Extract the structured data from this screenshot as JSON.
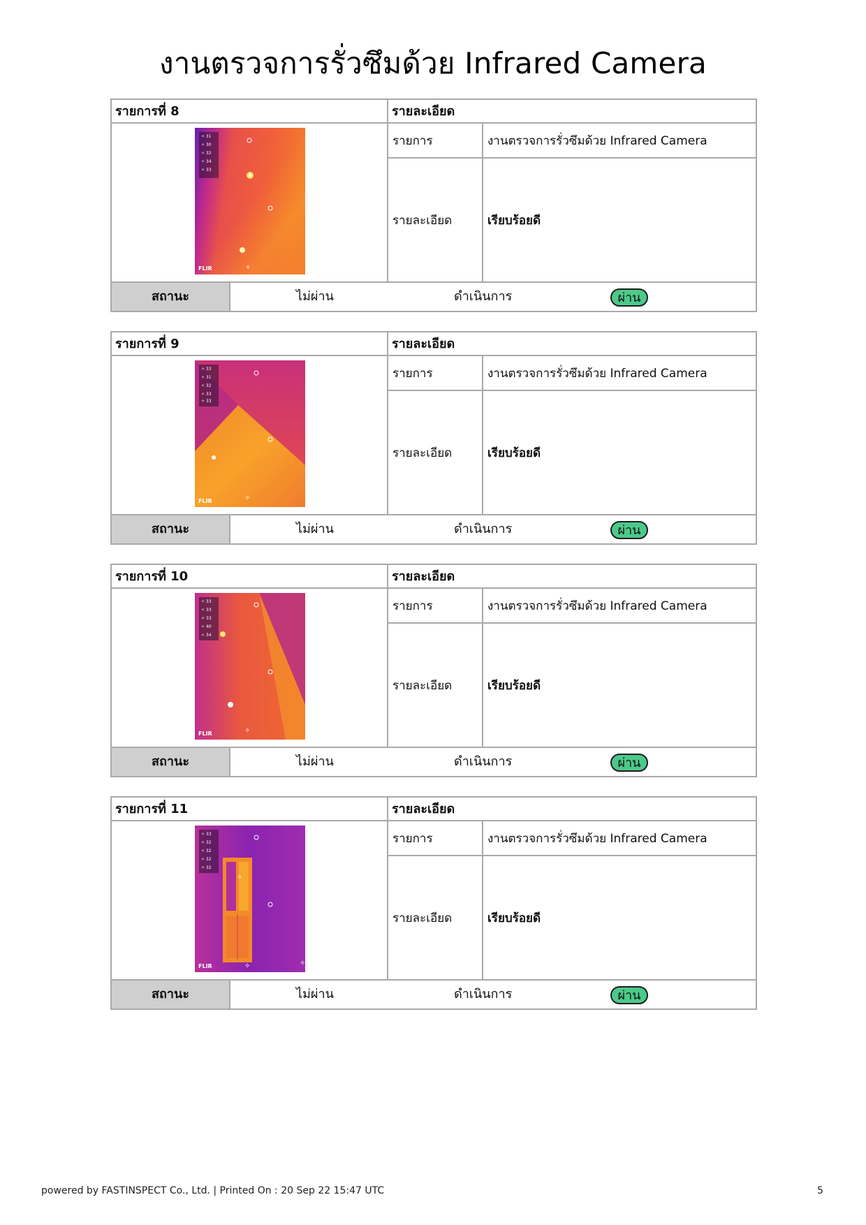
{
  "title": "งานตรวจการรั่วซึมด้วย Infrared Camera",
  "labels": {
    "detail_header": "รายละเอียด",
    "item": "รายการ",
    "detail": "รายละเอียด",
    "status": "สถานะ",
    "fail": "ไม่ผ่าน",
    "in_progress": "ดำเนินการ",
    "pass": "ผ่าน"
  },
  "items": [
    {
      "heading": "รายการที่ 8",
      "item_value": "งานตรวจการรั่วซึมด้วย Infrared Camera",
      "detail_value": "เรียบร้อยดี",
      "selected_status": "ผ่าน",
      "photo_brand": "FLIR"
    },
    {
      "heading": "รายการที่ 9",
      "item_value": "งานตรวจการรั่วซึมด้วย Infrared Camera",
      "detail_value": "เรียบร้อยดี",
      "selected_status": "ผ่าน",
      "photo_brand": "FLIR"
    },
    {
      "heading": "รายการที่ 10",
      "item_value": "งานตรวจการรั่วซึมด้วย Infrared Camera",
      "detail_value": "เรียบร้อยดี",
      "selected_status": "ผ่าน",
      "photo_brand": "FLIR"
    },
    {
      "heading": "รายการที่ 11",
      "item_value": "งานตรวจการรั่วซึมด้วย Infrared Camera",
      "detail_value": "เรียบร้อยดี",
      "selected_status": "ผ่าน",
      "photo_brand": "FLIR"
    }
  ],
  "footer": {
    "text": "powered by FASTINSPECT Co., Ltd. | Printed On : 20 Sep 22 15:47 UTC",
    "page_number": "5"
  },
  "colors": {
    "pass_badge": "#4cc98a",
    "status_label_bg": "#cfcfcf",
    "border": "#a9a9a9"
  }
}
